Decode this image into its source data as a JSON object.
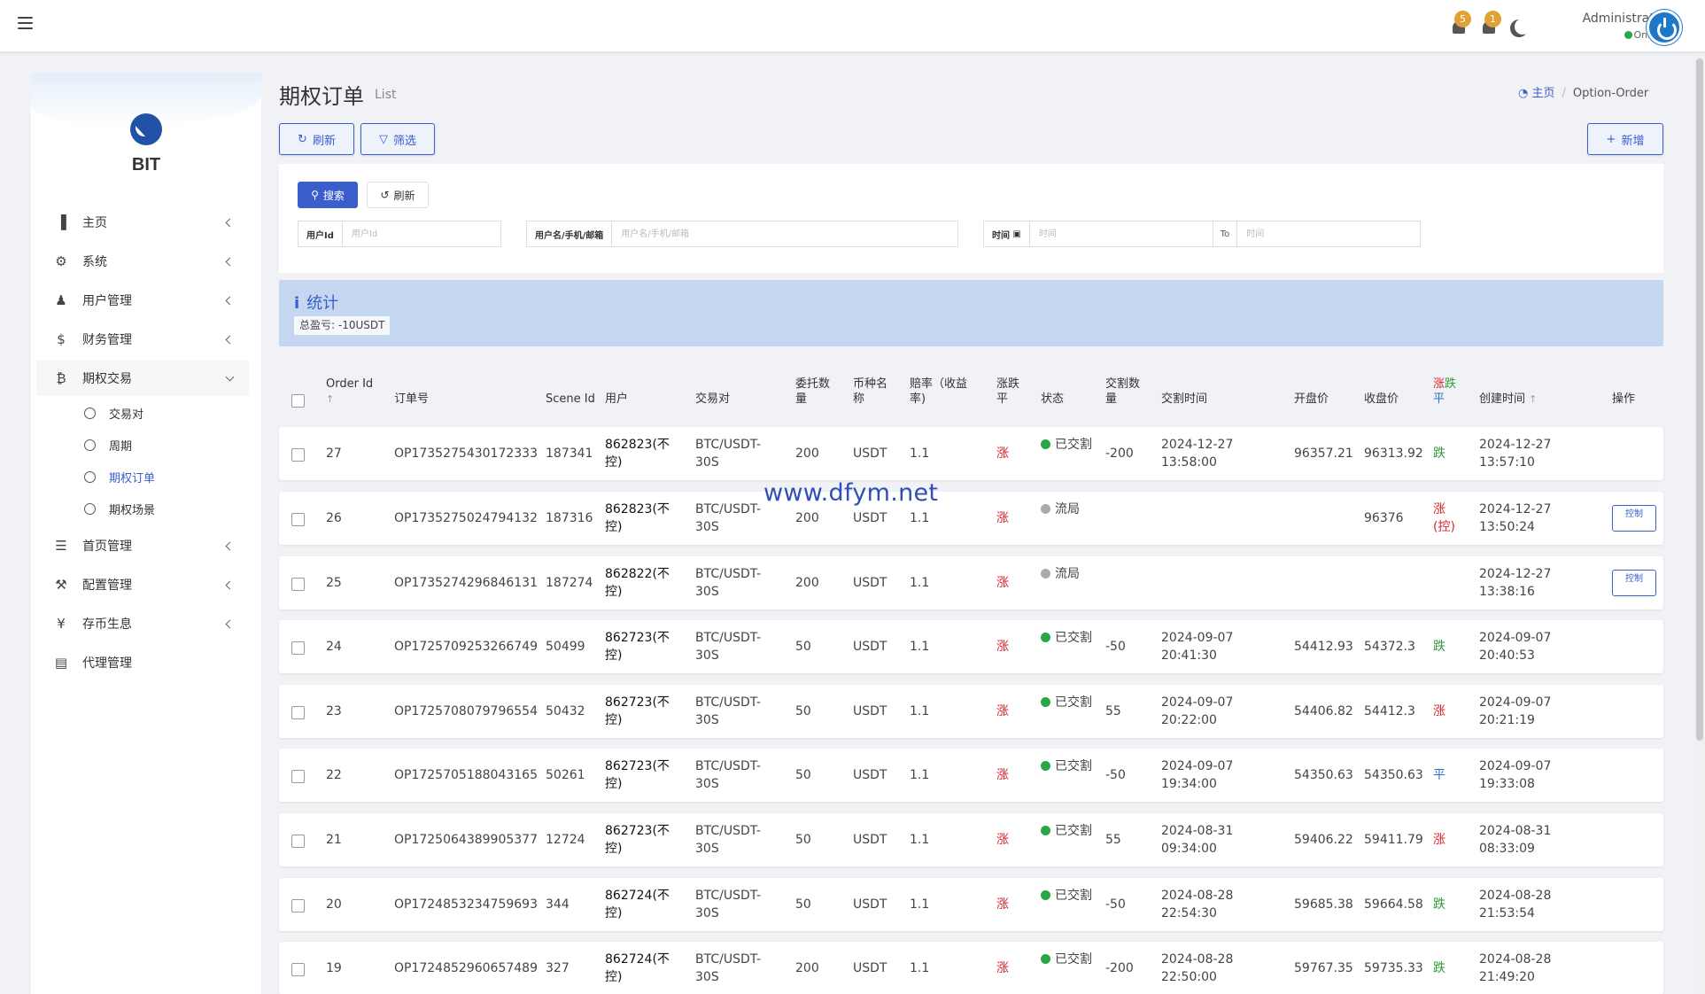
{
  "header": {
    "notifications": [
      {
        "count": "5"
      },
      {
        "count": "1"
      }
    ],
    "user_name": "Administrator",
    "user_status": "Online",
    "colors": {
      "badge": "#e0a236",
      "online": "#28a745",
      "avatar": "#1e78c8"
    }
  },
  "sidebar": {
    "logo_text": "BIT",
    "items": [
      {
        "label": "主页",
        "icon": "bar-chart-icon"
      },
      {
        "label": "系统",
        "icon": "gear-icon"
      },
      {
        "label": "用户管理",
        "icon": "users-icon"
      },
      {
        "label": "财务管理",
        "icon": "dollar-icon"
      },
      {
        "label": "期权交易",
        "icon": "bitcoin-icon"
      },
      {
        "label": "首页管理",
        "icon": "list-icon"
      },
      {
        "label": "配置管理",
        "icon": "wrench-icon"
      },
      {
        "label": "存币生息",
        "icon": "yen-icon"
      },
      {
        "label": "代理管理",
        "icon": "id-card-icon"
      }
    ],
    "sub_items": [
      {
        "label": "交易对"
      },
      {
        "label": "周期"
      },
      {
        "label": "期权订单"
      },
      {
        "label": "期权场景"
      }
    ]
  },
  "page": {
    "title": "期权订单",
    "subtitle": "List",
    "breadcrumb": {
      "home": "主页",
      "current": "Option-Order"
    },
    "toolbar": {
      "refresh": "刷新",
      "filter": "筛选",
      "add": "新增"
    }
  },
  "search": {
    "search_btn": "搜索",
    "reset_btn": "刷新",
    "user_id_label": "用户Id",
    "user_id_placeholder": "用户Id",
    "username_label": "用户名/手机/邮箱",
    "username_placeholder": "用户名/手机/邮箱",
    "time_label": "时间",
    "time_from_placeholder": "时间",
    "to_label": "To",
    "time_to_placeholder": "时间"
  },
  "stats": {
    "title": "统计",
    "total_label": "总盈亏: -10USDT"
  },
  "table": {
    "headers": {
      "order_id": "Order Id",
      "order_no": "订单号",
      "scene_id": "Scene Id",
      "user": "用户",
      "pair": "交易对",
      "amount": "委托数量",
      "currency": "币种名称",
      "rate": "赔率（收益率)",
      "direction": "涨跌平",
      "direction_up": "涨",
      "direction_down": "跌",
      "direction_flat": "平",
      "status": "状态",
      "delivery_qty": "交割数量",
      "delivery_time": "交割时间",
      "open_price": "开盘价",
      "close_price": "收盘价",
      "result": "涨跌平",
      "created": "创建时间",
      "actions": "操作"
    },
    "rows": [
      {
        "id": "27",
        "no": "OP1735275430172333",
        "scene": "187341",
        "user": "862823(不控)",
        "pair": "BTC/USDT-30S",
        "amount": "200",
        "currency": "USDT",
        "rate": "1.1",
        "dir": "涨",
        "status": "已交割",
        "status_color": "#28a745",
        "qty": "-200",
        "dtime": "2024-12-27 13:58:00",
        "open": "96357.21",
        "close": "96313.92",
        "result": "跌",
        "result_color": "#2e9b3a",
        "created": "2024-12-27 13:57:10",
        "action": ""
      },
      {
        "id": "26",
        "no": "OP1735275024794132",
        "scene": "187316",
        "user": "862823(不控)",
        "pair": "BTC/USDT-30S",
        "amount": "200",
        "currency": "USDT",
        "rate": "1.1",
        "dir": "涨",
        "status": "流局",
        "status_color": "#aaaaaa",
        "qty": "",
        "dtime": "",
        "open": "",
        "close": "96376",
        "result": "涨(控)",
        "result_color": "#d9262b",
        "created": "2024-12-27 13:50:24",
        "action": "控制"
      },
      {
        "id": "25",
        "no": "OP1735274296846131",
        "scene": "187274",
        "user": "862822(不控)",
        "pair": "BTC/USDT-30S",
        "amount": "200",
        "currency": "USDT",
        "rate": "1.1",
        "dir": "涨",
        "status": "流局",
        "status_color": "#aaaaaa",
        "qty": "",
        "dtime": "",
        "open": "",
        "close": "",
        "result": "",
        "result_color": "#d9262b",
        "created": "2024-12-27 13:38:16",
        "action": "控制"
      },
      {
        "id": "24",
        "no": "OP1725709253266749",
        "scene": "50499",
        "user": "862723(不控)",
        "pair": "BTC/USDT-30S",
        "amount": "50",
        "currency": "USDT",
        "rate": "1.1",
        "dir": "涨",
        "status": "已交割",
        "status_color": "#28a745",
        "qty": "-50",
        "dtime": "2024-09-07 20:41:30",
        "open": "54412.93",
        "close": "54372.3",
        "result": "跌",
        "result_color": "#2e9b3a",
        "created": "2024-09-07 20:40:53",
        "action": ""
      },
      {
        "id": "23",
        "no": "OP1725708079796554",
        "scene": "50432",
        "user": "862723(不控)",
        "pair": "BTC/USDT-30S",
        "amount": "50",
        "currency": "USDT",
        "rate": "1.1",
        "dir": "涨",
        "status": "已交割",
        "status_color": "#28a745",
        "qty": "55",
        "dtime": "2024-09-07 20:22:00",
        "open": "54406.82",
        "close": "54412.3",
        "result": "涨",
        "result_color": "#d9262b",
        "created": "2024-09-07 20:21:19",
        "action": ""
      },
      {
        "id": "22",
        "no": "OP1725705188043165",
        "scene": "50261",
        "user": "862723(不控)",
        "pair": "BTC/USDT-30S",
        "amount": "50",
        "currency": "USDT",
        "rate": "1.1",
        "dir": "涨",
        "status": "已交割",
        "status_color": "#28a745",
        "qty": "-50",
        "dtime": "2024-09-07 19:34:00",
        "open": "54350.63",
        "close": "54350.63",
        "result": "平",
        "result_color": "#2f6fce",
        "created": "2024-09-07 19:33:08",
        "action": ""
      },
      {
        "id": "21",
        "no": "OP1725064389905377",
        "scene": "12724",
        "user": "862723(不控)",
        "pair": "BTC/USDT-30S",
        "amount": "50",
        "currency": "USDT",
        "rate": "1.1",
        "dir": "涨",
        "status": "已交割",
        "status_color": "#28a745",
        "qty": "55",
        "dtime": "2024-08-31 09:34:00",
        "open": "59406.22",
        "close": "59411.79",
        "result": "涨",
        "result_color": "#d9262b",
        "created": "2024-08-31 08:33:09",
        "action": ""
      },
      {
        "id": "20",
        "no": "OP1724853234759693",
        "scene": "344",
        "user": "862724(不控)",
        "pair": "BTC/USDT-30S",
        "amount": "50",
        "currency": "USDT",
        "rate": "1.1",
        "dir": "涨",
        "status": "已交割",
        "status_color": "#28a745",
        "qty": "-50",
        "dtime": "2024-08-28 22:54:30",
        "open": "59685.38",
        "close": "59664.58",
        "result": "跌",
        "result_color": "#2e9b3a",
        "created": "2024-08-28 21:53:54",
        "action": ""
      },
      {
        "id": "19",
        "no": "OP1724852960657489",
        "scene": "327",
        "user": "862724(不控)",
        "pair": "BTC/USDT-30S",
        "amount": "200",
        "currency": "USDT",
        "rate": "1.1",
        "dir": "涨",
        "status": "已交割",
        "status_color": "#28a745",
        "qty": "-200",
        "dtime": "2024-08-28 22:50:00",
        "open": "59767.35",
        "close": "59735.33",
        "result": "跌",
        "result_color": "#2e9b3a",
        "created": "2024-08-28 21:49:20",
        "action": ""
      }
    ]
  },
  "watermark": "www.dfym.net"
}
